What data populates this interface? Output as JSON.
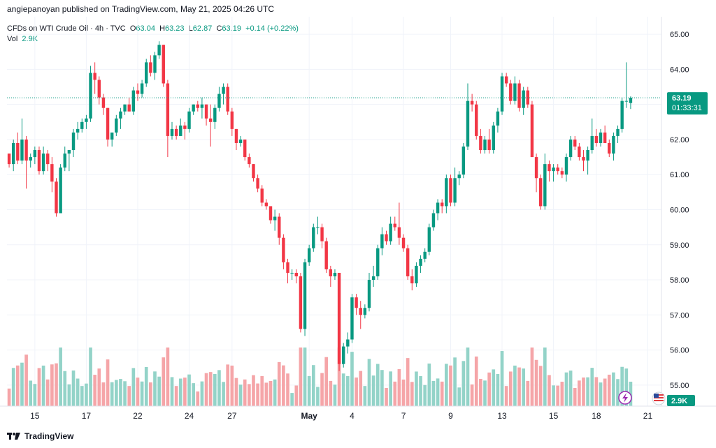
{
  "header": {
    "publisher": "angiepanoyan published on TradingView.com, May 21, 2025 04:26 UTC"
  },
  "legend": {
    "symbol": "CFDs on WTI Crude Oil · 4h · TVC",
    "o_label": "O",
    "o": "63.04",
    "h_label": "H",
    "h": "63.23",
    "l_label": "L",
    "l": "62.87",
    "c_label": "C",
    "c": "63.19",
    "change": "+0.14 (+0.22%)",
    "vol_label": "Vol",
    "vol": "2.9K"
  },
  "price_badge": {
    "price": "63.19",
    "countdown": "01:33:31"
  },
  "vol_badge": "2.9K",
  "footer": {
    "brand": "TradingView"
  },
  "colors": {
    "up": "#089981",
    "down": "#f23645",
    "vol_up": "#93d3c8",
    "vol_down": "#f5a5a8",
    "grid": "#f0f3fa"
  },
  "chart_data": {
    "type": "candlestick",
    "y_ticks": [
      "65.00",
      "64.00",
      "63.00",
      "62.00",
      "61.00",
      "60.00",
      "59.00",
      "58.00",
      "57.00",
      "56.00",
      "55.00"
    ],
    "ylim": [
      54.4,
      65.5
    ],
    "x_ticks": [
      {
        "label": "15",
        "i": 6
      },
      {
        "label": "17",
        "i": 18
      },
      {
        "label": "22",
        "i": 30
      },
      {
        "label": "24",
        "i": 42
      },
      {
        "label": "27",
        "i": 52
      },
      {
        "label": "May",
        "i": 70
      },
      {
        "label": "4",
        "i": 80
      },
      {
        "label": "7",
        "i": 92
      },
      {
        "label": "9",
        "i": 103
      },
      {
        "label": "13",
        "i": 115
      },
      {
        "label": "15",
        "i": 127
      },
      {
        "label": "18",
        "i": 137
      },
      {
        "label": "21",
        "i": 149
      }
    ],
    "last_price": 63.19,
    "candles": [
      [
        61.6,
        61.5,
        61.2,
        61.3
      ],
      [
        61.3,
        62.0,
        61.1,
        61.9
      ],
      [
        61.9,
        62.2,
        61.3,
        61.4
      ],
      [
        61.4,
        62.6,
        61.3,
        62.0
      ],
      [
        62.0,
        62.1,
        60.6,
        61.4
      ],
      [
        61.4,
        61.6,
        61.2,
        61.5
      ],
      [
        61.5,
        61.8,
        61.3,
        61.7
      ],
      [
        61.7,
        61.8,
        61.0,
        61.1
      ],
      [
        61.1,
        61.8,
        61.0,
        61.6
      ],
      [
        61.6,
        61.7,
        61.1,
        61.3
      ],
      [
        61.3,
        61.5,
        60.5,
        60.8
      ],
      [
        60.8,
        60.9,
        59.8,
        59.9
      ],
      [
        59.9,
        61.3,
        59.9,
        61.2
      ],
      [
        61.2,
        61.8,
        61.1,
        61.6
      ],
      [
        61.6,
        61.7,
        61.1,
        61.7
      ],
      [
        61.7,
        62.3,
        61.5,
        62.2
      ],
      [
        62.2,
        62.5,
        62.0,
        62.3
      ],
      [
        62.3,
        62.6,
        62.2,
        62.5
      ],
      [
        62.5,
        62.7,
        62.3,
        62.6
      ],
      [
        62.6,
        64.1,
        62.5,
        63.9
      ],
      [
        63.9,
        64.2,
        63.3,
        63.7
      ],
      [
        63.7,
        63.8,
        63.0,
        63.2
      ],
      [
        63.2,
        63.3,
        62.7,
        62.9
      ],
      [
        62.9,
        62.9,
        61.8,
        62.0
      ],
      [
        62.0,
        62.1,
        61.8,
        62.2
      ],
      [
        62.2,
        62.7,
        62.1,
        62.6
      ],
      [
        62.6,
        62.9,
        62.3,
        62.8
      ],
      [
        62.8,
        63.0,
        62.7,
        63.0
      ],
      [
        63.0,
        63.2,
        62.8,
        62.8
      ],
      [
        62.8,
        63.5,
        62.7,
        63.4
      ],
      [
        63.4,
        63.6,
        63.1,
        63.3
      ],
      [
        63.3,
        63.7,
        63.2,
        63.6
      ],
      [
        63.6,
        64.3,
        63.5,
        64.2
      ],
      [
        64.2,
        64.4,
        63.8,
        63.9
      ],
      [
        63.9,
        64.5,
        63.7,
        64.4
      ],
      [
        64.4,
        64.8,
        64.3,
        64.7
      ],
      [
        64.7,
        64.7,
        63.5,
        63.6
      ],
      [
        63.6,
        63.7,
        61.5,
        62.1
      ],
      [
        62.1,
        62.5,
        62.0,
        62.3
      ],
      [
        62.3,
        62.4,
        62.0,
        62.1
      ],
      [
        62.1,
        62.6,
        62.1,
        62.4
      ],
      [
        62.4,
        62.5,
        62.0,
        62.3
      ],
      [
        62.3,
        62.9,
        62.2,
        62.8
      ],
      [
        62.8,
        63.0,
        62.7,
        63.0
      ],
      [
        63.0,
        63.1,
        62.8,
        62.9
      ],
      [
        62.9,
        63.2,
        62.6,
        63.0
      ],
      [
        63.0,
        63.0,
        62.4,
        62.6
      ],
      [
        62.6,
        63.0,
        61.8,
        62.5
      ],
      [
        62.5,
        63.0,
        62.3,
        62.9
      ],
      [
        62.9,
        63.5,
        62.8,
        63.3
      ],
      [
        63.3,
        63.6,
        63.0,
        63.5
      ],
      [
        63.5,
        63.6,
        62.7,
        62.8
      ],
      [
        62.8,
        62.9,
        62.1,
        62.3
      ],
      [
        62.3,
        62.3,
        61.7,
        61.9
      ],
      [
        61.9,
        62.1,
        61.8,
        62.0
      ],
      [
        62.0,
        62.0,
        61.4,
        61.5
      ],
      [
        61.5,
        61.6,
        61.2,
        61.3
      ],
      [
        61.3,
        61.3,
        60.8,
        60.9
      ],
      [
        60.9,
        61.0,
        60.5,
        60.6
      ],
      [
        60.6,
        60.7,
        60.1,
        60.2
      ],
      [
        60.2,
        60.3,
        60.0,
        60.1
      ],
      [
        60.1,
        60.1,
        59.6,
        59.7
      ],
      [
        59.7,
        60.0,
        59.4,
        59.8
      ],
      [
        59.8,
        59.9,
        59.0,
        59.2
      ],
      [
        59.2,
        59.3,
        58.3,
        58.5
      ],
      [
        58.5,
        58.6,
        57.9,
        58.2
      ],
      [
        58.2,
        58.3,
        58.0,
        58.2
      ],
      [
        58.2,
        58.3,
        57.9,
        58.1
      ],
      [
        58.1,
        58.2,
        56.5,
        56.6
      ],
      [
        56.6,
        58.6,
        56.4,
        58.5
      ],
      [
        58.5,
        59.0,
        58.4,
        58.9
      ],
      [
        58.9,
        59.6,
        58.8,
        59.5
      ],
      [
        59.5,
        59.8,
        59.3,
        59.5
      ],
      [
        59.5,
        59.6,
        58.9,
        59.1
      ],
      [
        59.1,
        59.2,
        58.2,
        58.3
      ],
      [
        58.3,
        58.4,
        57.8,
        58.1
      ],
      [
        58.1,
        58.3,
        58.0,
        58.2
      ],
      [
        58.2,
        58.2,
        55.4,
        55.6
      ],
      [
        55.6,
        56.2,
        55.5,
        56.1
      ],
      [
        56.1,
        56.5,
        55.9,
        56.3
      ],
      [
        56.3,
        57.6,
        56.2,
        57.5
      ],
      [
        57.5,
        57.6,
        57.0,
        57.2
      ],
      [
        57.2,
        57.4,
        56.6,
        57.0
      ],
      [
        57.0,
        57.3,
        56.9,
        57.2
      ],
      [
        57.2,
        58.2,
        57.1,
        58.0
      ],
      [
        58.0,
        58.4,
        57.8,
        58.1
      ],
      [
        58.1,
        59.0,
        58.0,
        58.9
      ],
      [
        58.9,
        59.5,
        58.7,
        59.3
      ],
      [
        59.3,
        59.4,
        59.0,
        59.1
      ],
      [
        59.1,
        59.8,
        59.0,
        59.6
      ],
      [
        59.6,
        59.8,
        59.4,
        59.5
      ],
      [
        59.5,
        60.2,
        59.0,
        59.2
      ],
      [
        59.2,
        59.3,
        58.8,
        58.9
      ],
      [
        58.9,
        59.0,
        58.0,
        58.1
      ],
      [
        58.1,
        58.3,
        57.7,
        57.9
      ],
      [
        57.9,
        58.5,
        57.8,
        58.4
      ],
      [
        58.4,
        58.7,
        58.2,
        58.6
      ],
      [
        58.6,
        58.9,
        58.5,
        58.8
      ],
      [
        58.8,
        59.6,
        58.7,
        59.5
      ],
      [
        59.5,
        60.0,
        59.4,
        59.9
      ],
      [
        59.9,
        60.3,
        59.7,
        60.2
      ],
      [
        60.2,
        60.3,
        59.9,
        60.1
      ],
      [
        60.1,
        61.0,
        59.9,
        60.9
      ],
      [
        60.9,
        61.0,
        60.1,
        60.2
      ],
      [
        60.2,
        61.2,
        60.1,
        60.9
      ],
      [
        60.9,
        61.1,
        60.7,
        61.0
      ],
      [
        61.0,
        61.9,
        60.9,
        61.8
      ],
      [
        61.8,
        63.6,
        61.7,
        63.1
      ],
      [
        63.1,
        63.3,
        62.8,
        63.0
      ],
      [
        63.0,
        63.1,
        62.0,
        62.1
      ],
      [
        62.1,
        62.3,
        61.6,
        61.7
      ],
      [
        61.7,
        62.1,
        61.6,
        62.0
      ],
      [
        62.0,
        62.3,
        61.6,
        61.7
      ],
      [
        61.7,
        62.5,
        61.6,
        62.4
      ],
      [
        62.4,
        62.9,
        62.2,
        62.8
      ],
      [
        62.8,
        63.9,
        62.7,
        63.8
      ],
      [
        63.8,
        63.9,
        63.5,
        63.6
      ],
      [
        63.6,
        63.7,
        63.0,
        63.1
      ],
      [
        63.1,
        63.8,
        63.0,
        63.6
      ],
      [
        63.6,
        63.7,
        62.8,
        62.9
      ],
      [
        62.9,
        63.5,
        62.7,
        63.4
      ],
      [
        63.4,
        63.5,
        62.9,
        63.0
      ],
      [
        63.0,
        63.1,
        61.5,
        61.5
      ],
      [
        61.5,
        61.6,
        60.5,
        60.9
      ],
      [
        60.9,
        61.0,
        60.0,
        60.1
      ],
      [
        60.1,
        61.6,
        60.0,
        61.3
      ],
      [
        61.3,
        61.4,
        60.8,
        61.1
      ],
      [
        61.1,
        61.3,
        60.8,
        61.2
      ],
      [
        61.2,
        61.3,
        61.0,
        61.1
      ],
      [
        61.1,
        61.2,
        60.9,
        61.0
      ],
      [
        61.0,
        61.6,
        60.8,
        61.5
      ],
      [
        61.5,
        62.1,
        61.4,
        62.0
      ],
      [
        62.0,
        62.1,
        61.7,
        61.8
      ],
      [
        61.8,
        61.9,
        61.4,
        61.5
      ],
      [
        61.5,
        61.7,
        61.1,
        61.4
      ],
      [
        61.4,
        61.8,
        61.0,
        61.7
      ],
      [
        61.7,
        62.6,
        61.6,
        62.1
      ],
      [
        62.1,
        62.3,
        61.8,
        61.9
      ],
      [
        61.9,
        62.3,
        61.8,
        62.2
      ],
      [
        62.2,
        62.4,
        61.9,
        61.9
      ],
      [
        61.9,
        62.0,
        61.5,
        61.6
      ],
      [
        61.6,
        62.2,
        61.4,
        62.1
      ],
      [
        62.1,
        62.4,
        61.9,
        62.3
      ],
      [
        62.3,
        63.2,
        62.2,
        63.1
      ],
      [
        63.1,
        64.2,
        62.9,
        63.1
      ],
      [
        63.04,
        63.23,
        62.87,
        63.19
      ]
    ],
    "volume_scale_max": 1.0
  }
}
